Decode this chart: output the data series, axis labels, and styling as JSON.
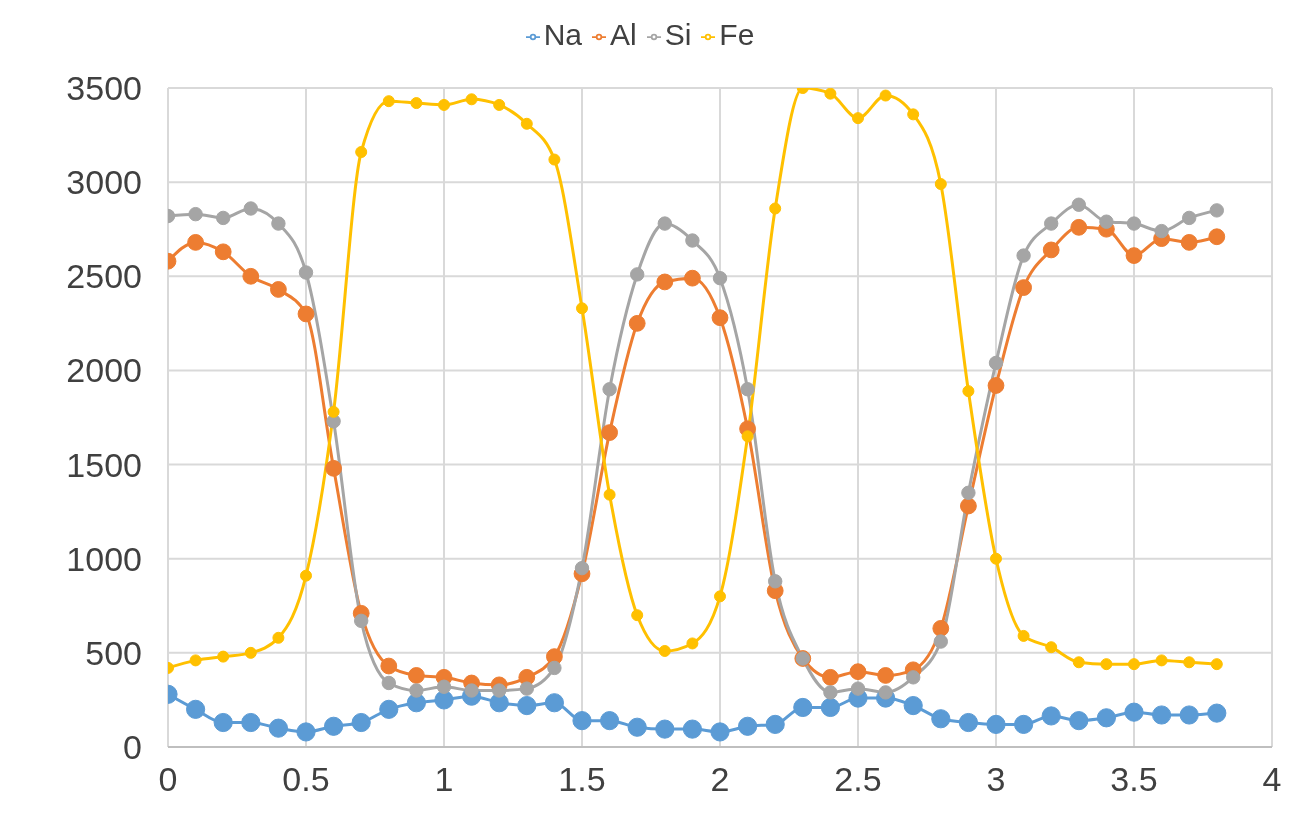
{
  "chart_data": {
    "type": "line",
    "x": [
      0,
      0.1,
      0.2,
      0.3,
      0.4,
      0.5,
      0.6,
      0.7,
      0.8,
      0.9,
      1,
      1.1,
      1.2,
      1.3,
      1.4,
      1.5,
      1.6,
      1.7,
      1.8,
      1.9,
      2,
      2.1,
      2.2,
      2.3,
      2.4,
      2.5,
      2.6,
      2.7,
      2.8,
      2.9,
      3,
      3.1,
      3.2,
      3.3,
      3.4,
      3.5,
      3.6,
      3.7,
      3.8
    ],
    "series": [
      {
        "name": "Na",
        "color": "#5b9bd5",
        "values": [
          280,
          200,
          130,
          130,
          100,
          80,
          110,
          130,
          200,
          235,
          250,
          270,
          235,
          220,
          235,
          140,
          140,
          105,
          95,
          95,
          80,
          110,
          120,
          210,
          210,
          260,
          260,
          220,
          150,
          130,
          120,
          120,
          165,
          140,
          155,
          185,
          170,
          170,
          180
        ]
      },
      {
        "name": "Al",
        "color": "#ed7d31",
        "values": [
          2580,
          2680,
          2630,
          2500,
          2430,
          2300,
          1480,
          710,
          430,
          380,
          370,
          340,
          330,
          370,
          480,
          920,
          1670,
          2250,
          2470,
          2490,
          2280,
          1690,
          830,
          470,
          370,
          400,
          380,
          410,
          630,
          1280,
          1920,
          2440,
          2640,
          2760,
          2750,
          2610,
          2700,
          2680,
          2710
        ]
      },
      {
        "name": "Si",
        "color": "#a5a5a5",
        "values": [
          2820,
          2830,
          2810,
          2860,
          2780,
          2520,
          1730,
          670,
          340,
          300,
          320,
          300,
          300,
          310,
          420,
          950,
          1900,
          2510,
          2780,
          2690,
          2490,
          1900,
          880,
          470,
          290,
          310,
          290,
          370,
          560,
          1350,
          2040,
          2610,
          2780,
          2880,
          2790,
          2780,
          2740,
          2810,
          2850
        ]
      },
      {
        "name": "Fe",
        "color": "#ffc000",
        "values": [
          420,
          460,
          480,
          500,
          580,
          910,
          1780,
          3160,
          3430,
          3420,
          3410,
          3440,
          3410,
          3310,
          3120,
          2330,
          1340,
          700,
          510,
          550,
          800,
          1650,
          2860,
          3500,
          3470,
          3340,
          3460,
          3360,
          2990,
          1890,
          1000,
          590,
          530,
          450,
          440,
          440,
          460,
          450,
          440
        ]
      }
    ],
    "xlim": [
      0,
      4
    ],
    "xticks": [
      0,
      0.5,
      1,
      1.5,
      2,
      2.5,
      3,
      3.5,
      4
    ],
    "ylim": [
      0,
      3500
    ],
    "yticks": [
      0,
      500,
      1000,
      1500,
      2000,
      2500,
      3000,
      3500
    ],
    "grid": true,
    "legend": "top",
    "marker": "circle",
    "line_style": "solid"
  }
}
